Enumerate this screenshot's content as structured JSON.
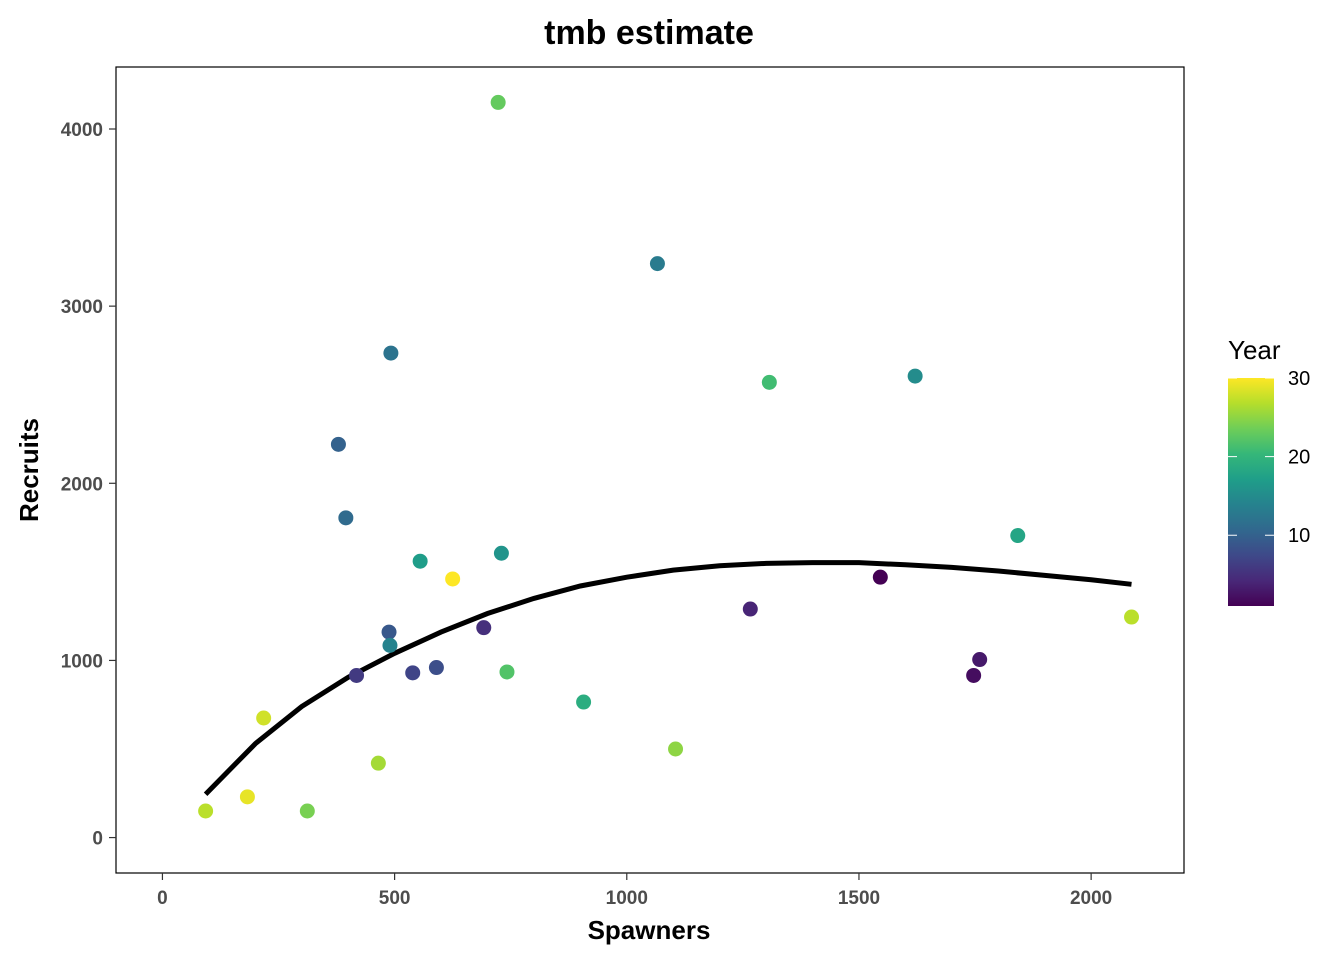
{
  "chart_data": {
    "type": "scatter",
    "title": "tmb estimate",
    "xlabel": "Spawners",
    "ylabel": "Recruits",
    "xlim": [
      -100,
      2200
    ],
    "ylim": [
      -200,
      4350
    ],
    "xticks": [
      0,
      500,
      1000,
      1500,
      2000
    ],
    "yticks": [
      0,
      1000,
      2000,
      3000,
      4000
    ],
    "grid": false,
    "legend": {
      "title": "Year",
      "position": "right",
      "range": [
        1,
        30
      ],
      "ticks": [
        10,
        20,
        30
      ]
    },
    "colors": {
      "curve": "#000000",
      "frame": "#000000",
      "tick_label": "#4d4d4d"
    },
    "points": [
      {
        "x": 1546,
        "y": 1470,
        "year": 1
      },
      {
        "x": 1747,
        "y": 915,
        "year": 2
      },
      {
        "x": 1760,
        "y": 1005,
        "year": 3
      },
      {
        "x": 1266,
        "y": 1290,
        "year": 4
      },
      {
        "x": 692,
        "y": 1185,
        "year": 5
      },
      {
        "x": 418,
        "y": 915,
        "year": 6
      },
      {
        "x": 539,
        "y": 930,
        "year": 7
      },
      {
        "x": 590,
        "y": 960,
        "year": 8
      },
      {
        "x": 488,
        "y": 1160,
        "year": 9
      },
      {
        "x": 379,
        "y": 2220,
        "year": 10
      },
      {
        "x": 395,
        "y": 1805,
        "year": 11
      },
      {
        "x": 492,
        "y": 2735,
        "year": 12
      },
      {
        "x": 1066,
        "y": 3240,
        "year": 13
      },
      {
        "x": 490,
        "y": 1085,
        "year": 14
      },
      {
        "x": 1621,
        "y": 2605,
        "year": 15
      },
      {
        "x": 730,
        "y": 1605,
        "year": 16
      },
      {
        "x": 555,
        "y": 1560,
        "year": 17
      },
      {
        "x": 1842,
        "y": 1705,
        "year": 18
      },
      {
        "x": 907,
        "y": 765,
        "year": 19
      },
      {
        "x": 1307,
        "y": 2570,
        "year": 21
      },
      {
        "x": 742,
        "y": 935,
        "year": 22
      },
      {
        "x": 723,
        "y": 4150,
        "year": 23
      },
      {
        "x": 312,
        "y": 150,
        "year": 24
      },
      {
        "x": 1105,
        "y": 500,
        "year": 25
      },
      {
        "x": 465,
        "y": 420,
        "year": 26
      },
      {
        "x": 93,
        "y": 150,
        "year": 27
      },
      {
        "x": 2087,
        "y": 1245,
        "year": 27
      },
      {
        "x": 218,
        "y": 675,
        "year": 28
      },
      {
        "x": 183,
        "y": 230,
        "year": 29
      },
      {
        "x": 625,
        "y": 1460,
        "year": 30
      }
    ],
    "curve": {
      "name": "tmb estimate",
      "x": [
        93,
        200,
        300,
        400,
        500,
        600,
        700,
        800,
        900,
        1000,
        1100,
        1200,
        1300,
        1400,
        1500,
        1600,
        1700,
        1800,
        1900,
        2000,
        2087
      ],
      "y": [
        245,
        530,
        740,
        905,
        1040,
        1160,
        1265,
        1350,
        1420,
        1470,
        1510,
        1535,
        1548,
        1552,
        1552,
        1540,
        1525,
        1505,
        1480,
        1455,
        1430
      ]
    }
  }
}
